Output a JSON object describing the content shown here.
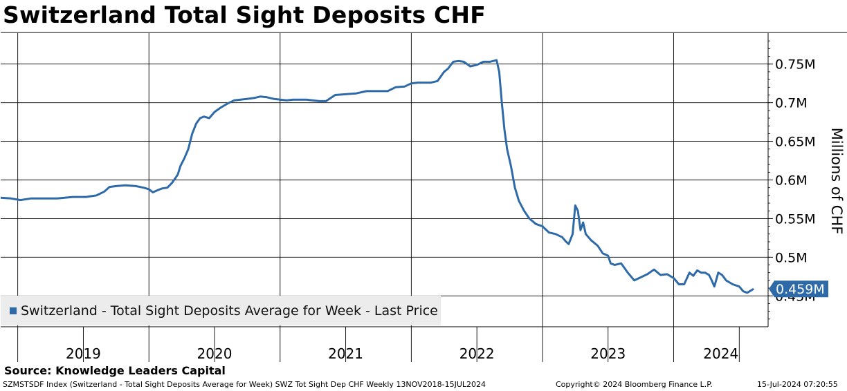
{
  "title": "Switzerland Total Sight Deposits CHF",
  "source": "Source: Knowledge Leaders Capital",
  "footer": {
    "left": "SZMSTSDF Index (Switzerland - Total Sight Deposits Average for Week) SWZ Tot Sight Dep CHF  Weekly 13NOV2018-15JUL2024",
    "middle": "Copyright© 2024 Bloomberg Finance L.P.",
    "right": "15-Jul-2024 07:20:55"
  },
  "chart_data": {
    "type": "line",
    "ylabel": "Millions of CHF",
    "ylim": [
      0.41,
      0.79
    ],
    "xlim": [
      2018.87,
      2024.72
    ],
    "y_ticks": [
      {
        "value": 0.45,
        "label": "0.45M"
      },
      {
        "value": 0.5,
        "label": "0.5M"
      },
      {
        "value": 0.55,
        "label": "0.55M"
      },
      {
        "value": 0.6,
        "label": "0.6M"
      },
      {
        "value": 0.65,
        "label": "0.65M"
      },
      {
        "value": 0.7,
        "label": "0.7M"
      },
      {
        "value": 0.75,
        "label": "0.75M"
      }
    ],
    "year_labels": [
      "2019",
      "2020",
      "2021",
      "2022",
      "2023",
      "2024"
    ],
    "year_boundaries": [
      2019.0,
      2020.0,
      2021.0,
      2022.0,
      2023.0,
      2024.0
    ],
    "grid": true,
    "legend": "bottom-left",
    "last_value_label": "0.459M",
    "color": "#2f6aa8",
    "series": [
      {
        "name": "Switzerland - Total Sight Deposits Average for Week - Last Price",
        "points": [
          [
            2018.87,
            0.577
          ],
          [
            2018.95,
            0.576
          ],
          [
            2019.02,
            0.574
          ],
          [
            2019.1,
            0.576
          ],
          [
            2019.2,
            0.576
          ],
          [
            2019.3,
            0.576
          ],
          [
            2019.42,
            0.578
          ],
          [
            2019.52,
            0.578
          ],
          [
            2019.6,
            0.58
          ],
          [
            2019.66,
            0.585
          ],
          [
            2019.7,
            0.591
          ],
          [
            2019.75,
            0.592
          ],
          [
            2019.82,
            0.593
          ],
          [
            2019.9,
            0.592
          ],
          [
            2019.96,
            0.59
          ],
          [
            2020.0,
            0.588
          ],
          [
            2020.03,
            0.584
          ],
          [
            2020.07,
            0.587
          ],
          [
            2020.1,
            0.589
          ],
          [
            2020.14,
            0.59
          ],
          [
            2020.18,
            0.597
          ],
          [
            2020.22,
            0.607
          ],
          [
            2020.24,
            0.618
          ],
          [
            2020.27,
            0.628
          ],
          [
            2020.3,
            0.64
          ],
          [
            2020.33,
            0.66
          ],
          [
            2020.36,
            0.673
          ],
          [
            2020.39,
            0.68
          ],
          [
            2020.42,
            0.682
          ],
          [
            2020.46,
            0.68
          ],
          [
            2020.5,
            0.688
          ],
          [
            2020.55,
            0.694
          ],
          [
            2020.6,
            0.699
          ],
          [
            2020.65,
            0.703
          ],
          [
            2020.7,
            0.704
          ],
          [
            2020.75,
            0.705
          ],
          [
            2020.8,
            0.706
          ],
          [
            2020.85,
            0.708
          ],
          [
            2020.9,
            0.707
          ],
          [
            2020.95,
            0.705
          ],
          [
            2021.0,
            0.704
          ],
          [
            2021.05,
            0.703
          ],
          [
            2021.1,
            0.704
          ],
          [
            2021.2,
            0.704
          ],
          [
            2021.3,
            0.702
          ],
          [
            2021.35,
            0.702
          ],
          [
            2021.42,
            0.71
          ],
          [
            2021.5,
            0.711
          ],
          [
            2021.58,
            0.712
          ],
          [
            2021.66,
            0.715
          ],
          [
            2021.75,
            0.715
          ],
          [
            2021.82,
            0.715
          ],
          [
            2021.88,
            0.72
          ],
          [
            2021.95,
            0.721
          ],
          [
            2022.0,
            0.725
          ],
          [
            2022.05,
            0.726
          ],
          [
            2022.15,
            0.726
          ],
          [
            2022.2,
            0.728
          ],
          [
            2022.25,
            0.74
          ],
          [
            2022.28,
            0.744
          ],
          [
            2022.32,
            0.753
          ],
          [
            2022.36,
            0.754
          ],
          [
            2022.4,
            0.753
          ],
          [
            2022.45,
            0.747
          ],
          [
            2022.5,
            0.749
          ],
          [
            2022.55,
            0.753
          ],
          [
            2022.6,
            0.753
          ],
          [
            2022.65,
            0.755
          ],
          [
            2022.67,
            0.74
          ],
          [
            2022.69,
            0.7
          ],
          [
            2022.71,
            0.665
          ],
          [
            2022.73,
            0.64
          ],
          [
            2022.76,
            0.618
          ],
          [
            2022.79,
            0.59
          ],
          [
            2022.82,
            0.573
          ],
          [
            2022.86,
            0.56
          ],
          [
            2022.9,
            0.55
          ],
          [
            2022.95,
            0.543
          ],
          [
            2023.0,
            0.54
          ],
          [
            2023.05,
            0.532
          ],
          [
            2023.1,
            0.53
          ],
          [
            2023.15,
            0.526
          ],
          [
            2023.18,
            0.52
          ],
          [
            2023.2,
            0.517
          ],
          [
            2023.23,
            0.53
          ],
          [
            2023.25,
            0.567
          ],
          [
            2023.27,
            0.56
          ],
          [
            2023.29,
            0.535
          ],
          [
            2023.31,
            0.545
          ],
          [
            2023.33,
            0.53
          ],
          [
            2023.37,
            0.522
          ],
          [
            2023.42,
            0.515
          ],
          [
            2023.46,
            0.505
          ],
          [
            2023.5,
            0.502
          ],
          [
            2023.52,
            0.492
          ],
          [
            2023.55,
            0.49
          ],
          [
            2023.6,
            0.492
          ],
          [
            2023.65,
            0.48
          ],
          [
            2023.7,
            0.47
          ],
          [
            2023.75,
            0.474
          ],
          [
            2023.8,
            0.478
          ],
          [
            2023.85,
            0.484
          ],
          [
            2023.9,
            0.477
          ],
          [
            2023.95,
            0.478
          ],
          [
            2024.0,
            0.473
          ],
          [
            2024.04,
            0.465
          ],
          [
            2024.08,
            0.465
          ],
          [
            2024.12,
            0.48
          ],
          [
            2024.15,
            0.476
          ],
          [
            2024.18,
            0.483
          ],
          [
            2024.21,
            0.48
          ],
          [
            2024.24,
            0.48
          ],
          [
            2024.27,
            0.477
          ],
          [
            2024.29,
            0.47
          ],
          [
            2024.31,
            0.462
          ],
          [
            2024.34,
            0.48
          ],
          [
            2024.37,
            0.477
          ],
          [
            2024.4,
            0.47
          ],
          [
            2024.45,
            0.465
          ],
          [
            2024.5,
            0.462
          ],
          [
            2024.53,
            0.456
          ],
          [
            2024.56,
            0.454
          ],
          [
            2024.59,
            0.457
          ],
          [
            2024.61,
            0.459
          ]
        ]
      }
    ]
  }
}
